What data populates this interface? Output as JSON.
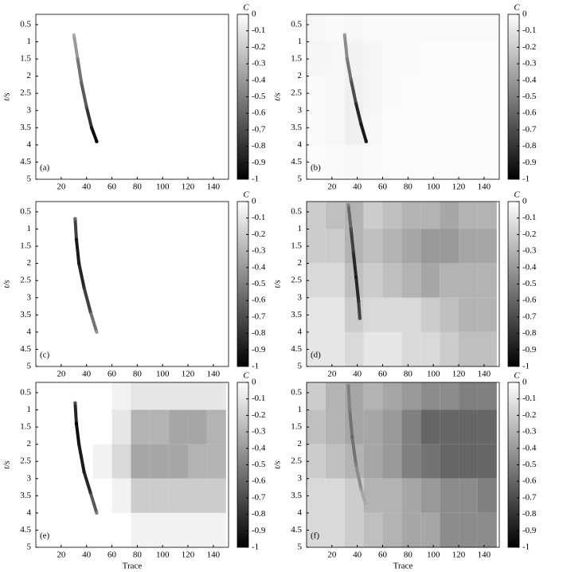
{
  "chart_data": [
    {
      "type": "heatmap",
      "label": "(a)",
      "ylabel": "t/s",
      "xlim": [
        0,
        152
      ],
      "ylim": [
        5,
        0.2
      ],
      "xticks": [
        20,
        40,
        60,
        80,
        100,
        120,
        140
      ],
      "yticks": [
        0.5,
        1,
        1.5,
        2,
        2.5,
        3,
        3.5,
        4,
        4.5,
        5
      ],
      "x_bins": [
        0,
        15,
        30,
        45,
        60,
        75,
        90,
        105,
        120,
        135,
        150
      ],
      "y_bins": [
        0.2,
        1,
        2,
        3,
        4,
        5
      ],
      "cells": [
        [
          0,
          0,
          0,
          0,
          0,
          0,
          0,
          0,
          0,
          0
        ],
        [
          0,
          0,
          0,
          0,
          0,
          0,
          0,
          0,
          0,
          0
        ],
        [
          0,
          0,
          0,
          0,
          0,
          0,
          0,
          0,
          0,
          0
        ],
        [
          0,
          0,
          0,
          0,
          0,
          0,
          0,
          0,
          0,
          0
        ],
        [
          0,
          0,
          0,
          0,
          0,
          0,
          0,
          0,
          0,
          0
        ]
      ],
      "streak": {
        "x": [
          30,
          33,
          36,
          40,
          44,
          48
        ],
        "y": [
          0.8,
          1.5,
          2.2,
          2.9,
          3.5,
          3.9
        ],
        "values": [
          -0.3,
          -0.5,
          -0.6,
          -0.7,
          -0.9,
          -1
        ]
      },
      "colorbar": {
        "label": "C",
        "lim": [
          -1,
          0
        ],
        "ticks": [
          0,
          -0.1,
          -0.2,
          -0.3,
          -0.4,
          -0.5,
          -0.6,
          -0.7,
          -0.8,
          -0.9,
          -1
        ]
      }
    },
    {
      "type": "heatmap",
      "label": "(b)",
      "ylabel": "t/s",
      "xlim": [
        0,
        152
      ],
      "ylim": [
        5,
        0.2
      ],
      "xticks": [
        20,
        40,
        60,
        80,
        100,
        120,
        140
      ],
      "yticks": [
        0.5,
        1,
        1.5,
        2,
        2.5,
        3,
        3.5,
        4,
        4.5,
        5
      ],
      "x_bins": [
        0,
        15,
        30,
        45,
        60,
        75,
        90,
        105,
        120,
        135,
        150
      ],
      "y_bins": [
        0.2,
        1,
        2,
        3,
        4,
        5
      ],
      "cells": [
        [
          -0.03,
          -0.02,
          -0.03,
          -0.02,
          -0.02,
          -0.02,
          -0.02,
          -0.02,
          -0.02,
          -0.02
        ],
        [
          -0.04,
          -0.03,
          -0.05,
          -0.04,
          -0.02,
          -0.02,
          -0.01,
          -0.01,
          -0.01,
          -0.01
        ],
        [
          -0.02,
          -0.03,
          -0.06,
          -0.04,
          -0.02,
          -0.01,
          -0.01,
          -0.01,
          -0.01,
          -0.01
        ],
        [
          -0.02,
          -0.03,
          -0.06,
          -0.03,
          -0.01,
          -0.01,
          -0.01,
          -0.01,
          -0.01,
          -0.01
        ],
        [
          -0.01,
          -0.02,
          -0.03,
          -0.02,
          -0.01,
          -0.01,
          -0.01,
          -0.01,
          -0.01,
          -0.01
        ]
      ],
      "streak": {
        "x": [
          30,
          32,
          35,
          39,
          43,
          47
        ],
        "y": [
          0.8,
          1.5,
          2.1,
          2.8,
          3.4,
          3.9
        ],
        "values": [
          -0.4,
          -0.5,
          -0.6,
          -0.8,
          -0.9,
          -0.9
        ]
      },
      "colorbar": {
        "label": "C",
        "lim": [
          -1,
          0
        ],
        "ticks": [
          0,
          -0.1,
          -0.2,
          -0.3,
          -0.4,
          -0.5,
          -0.6,
          -0.7,
          -0.8,
          -0.9,
          -1
        ]
      }
    },
    {
      "type": "heatmap",
      "label": "(c)",
      "ylabel": "t/s",
      "xlim": [
        0,
        152
      ],
      "ylim": [
        5,
        0.2
      ],
      "xticks": [
        20,
        40,
        60,
        80,
        100,
        120,
        140
      ],
      "yticks": [
        0.5,
        1,
        1.5,
        2,
        2.5,
        3,
        3.5,
        4,
        4.5,
        5
      ],
      "x_bins": [
        0,
        15,
        30,
        45,
        60,
        75,
        90,
        105,
        120,
        135,
        150
      ],
      "y_bins": [
        0.2,
        1,
        2,
        3,
        4,
        5
      ],
      "cells": [
        [
          0,
          0,
          0,
          0,
          0,
          0,
          0,
          0,
          0,
          0
        ],
        [
          0,
          0,
          0,
          0,
          0,
          0,
          0,
          0,
          0,
          0
        ],
        [
          0,
          0,
          0,
          0,
          0,
          0,
          0,
          0,
          0,
          0
        ],
        [
          0,
          0,
          0,
          0,
          0,
          0,
          0,
          0,
          0,
          0
        ],
        [
          0,
          0,
          0,
          0,
          0,
          0,
          0,
          0,
          0,
          0
        ]
      ],
      "streak": {
        "x": [
          31,
          32,
          34,
          38,
          43,
          48
        ],
        "y": [
          0.7,
          1.3,
          2,
          2.7,
          3.4,
          4
        ],
        "values": [
          -0.6,
          -0.9,
          -0.9,
          -0.8,
          -0.7,
          -0.4
        ]
      },
      "colorbar": {
        "label": "C",
        "lim": [
          -1,
          0
        ],
        "ticks": [
          0,
          -0.1,
          -0.2,
          -0.3,
          -0.4,
          -0.5,
          -0.6,
          -0.7,
          -0.8,
          -0.9,
          -1
        ]
      }
    },
    {
      "type": "heatmap",
      "label": "(d)",
      "ylabel": "t/s",
      "xlim": [
        0,
        152
      ],
      "ylim": [
        5,
        0.2
      ],
      "xticks": [
        20,
        40,
        60,
        80,
        100,
        120,
        140
      ],
      "yticks": [
        0.5,
        1,
        1.5,
        2,
        2.5,
        3,
        3.5,
        4,
        4.5,
        5
      ],
      "x_bins": [
        0,
        15,
        30,
        45,
        60,
        75,
        90,
        105,
        120,
        135,
        150
      ],
      "y_bins": [
        0.2,
        1,
        2,
        3,
        4,
        5
      ],
      "cells": [
        [
          -0.2,
          -0.25,
          -0.3,
          -0.2,
          -0.25,
          -0.3,
          -0.3,
          -0.35,
          -0.3,
          -0.3
        ],
        [
          -0.2,
          -0.2,
          -0.3,
          -0.25,
          -0.3,
          -0.35,
          -0.4,
          -0.4,
          -0.35,
          -0.35
        ],
        [
          -0.15,
          -0.15,
          -0.25,
          -0.2,
          -0.25,
          -0.3,
          -0.35,
          -0.3,
          -0.3,
          -0.3
        ],
        [
          -0.1,
          -0.1,
          -0.2,
          -0.15,
          -0.15,
          -0.15,
          -0.2,
          -0.25,
          -0.3,
          -0.3
        ],
        [
          -0.1,
          -0.1,
          -0.15,
          -0.1,
          -0.1,
          -0.15,
          -0.15,
          -0.2,
          -0.25,
          -0.25
        ]
      ],
      "streak": {
        "x": [
          33,
          35,
          37,
          39,
          41,
          42
        ],
        "y": [
          0.3,
          1,
          1.7,
          2.4,
          3.1,
          3.6
        ],
        "values": [
          -0.5,
          -0.7,
          -0.8,
          -0.9,
          -0.8,
          -0.7
        ]
      },
      "colorbar": {
        "label": "C",
        "lim": [
          -1,
          0
        ],
        "ticks": [
          0,
          -0.1,
          -0.2,
          -0.3,
          -0.4,
          -0.5,
          -0.6,
          -0.7,
          -0.8,
          -0.9,
          -1
        ]
      }
    },
    {
      "type": "heatmap",
      "label": "(e)",
      "ylabel": "t/s",
      "xlabel": "Trace",
      "xlim": [
        0,
        152
      ],
      "ylim": [
        5,
        0.2
      ],
      "xticks": [
        20,
        40,
        60,
        80,
        100,
        120,
        140
      ],
      "yticks": [
        0.5,
        1,
        1.5,
        2,
        2.5,
        3,
        3.5,
        4,
        4.5,
        5
      ],
      "x_bins": [
        0,
        15,
        30,
        45,
        60,
        75,
        90,
        105,
        120,
        135,
        150
      ],
      "y_bins": [
        0.2,
        1,
        2,
        3,
        4,
        5
      ],
      "cells": [
        [
          0,
          0,
          0,
          0,
          -0.05,
          -0.1,
          -0.1,
          -0.1,
          -0.1,
          -0.1
        ],
        [
          0,
          0,
          0,
          0,
          -0.1,
          -0.3,
          -0.3,
          -0.35,
          -0.35,
          -0.3
        ],
        [
          0,
          0,
          0,
          -0.05,
          -0.15,
          -0.35,
          -0.35,
          -0.35,
          -0.3,
          -0.3
        ],
        [
          0,
          0,
          0,
          0,
          -0.05,
          -0.2,
          -0.2,
          -0.2,
          -0.2,
          -0.2
        ],
        [
          0,
          0,
          0,
          0,
          0,
          -0.05,
          -0.05,
          -0.05,
          -0.05,
          -0.05
        ]
      ],
      "streak": {
        "x": [
          31,
          32,
          34,
          38,
          43,
          48
        ],
        "y": [
          0.8,
          1.4,
          2,
          2.8,
          3.4,
          4
        ],
        "values": [
          -0.7,
          -1,
          -0.9,
          -0.9,
          -0.8,
          -0.5
        ]
      },
      "colorbar": {
        "label": "C",
        "lim": [
          -1,
          0
        ],
        "ticks": [
          0,
          -0.1,
          -0.2,
          -0.3,
          -0.4,
          -0.5,
          -0.6,
          -0.7,
          -0.8,
          -0.9,
          -1
        ]
      }
    },
    {
      "type": "heatmap",
      "label": "(f)",
      "ylabel": "t/s",
      "xlabel": "Trace",
      "xlim": [
        0,
        152
      ],
      "ylim": [
        5,
        0.2
      ],
      "xticks": [
        20,
        40,
        60,
        80,
        100,
        120,
        140
      ],
      "yticks": [
        0.5,
        1,
        1.5,
        2,
        2.5,
        3,
        3.5,
        4,
        4.5,
        5
      ],
      "x_bins": [
        0,
        15,
        30,
        45,
        60,
        75,
        90,
        105,
        120,
        135,
        150
      ],
      "y_bins": [
        0.2,
        1,
        2,
        3,
        4,
        5
      ],
      "cells": [
        [
          -0.2,
          -0.3,
          -0.35,
          -0.3,
          -0.35,
          -0.4,
          -0.45,
          -0.45,
          -0.5,
          -0.5
        ],
        [
          -0.25,
          -0.3,
          -0.35,
          -0.35,
          -0.4,
          -0.5,
          -0.6,
          -0.6,
          -0.6,
          -0.6
        ],
        [
          -0.2,
          -0.25,
          -0.3,
          -0.35,
          -0.4,
          -0.5,
          -0.55,
          -0.6,
          -0.6,
          -0.6
        ],
        [
          -0.15,
          -0.15,
          -0.2,
          -0.3,
          -0.3,
          -0.35,
          -0.4,
          -0.45,
          -0.45,
          -0.5
        ],
        [
          -0.15,
          -0.15,
          -0.2,
          -0.25,
          -0.3,
          -0.35,
          -0.35,
          -0.45,
          -0.45,
          -0.45
        ]
      ],
      "streak": {
        "x": [
          33,
          34,
          36,
          39,
          43,
          47
        ],
        "y": [
          0.3,
          1,
          1.8,
          2.6,
          3.3,
          3.8
        ],
        "values": [
          -0.5,
          -0.5,
          -0.6,
          -0.5,
          -0.4,
          -0.3
        ]
      },
      "colorbar": {
        "label": "C",
        "lim": [
          -1,
          0
        ],
        "ticks": [
          0,
          -0.1,
          -0.2,
          -0.3,
          -0.4,
          -0.5,
          -0.6,
          -0.7,
          -0.8,
          -0.9,
          -1
        ]
      }
    }
  ]
}
